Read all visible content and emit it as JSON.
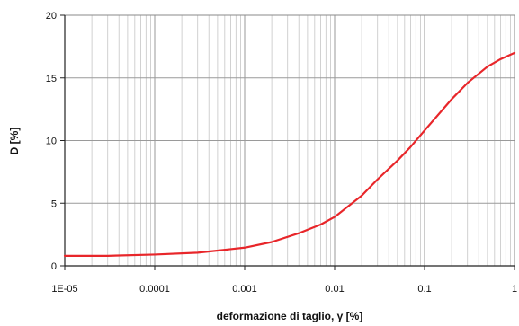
{
  "chart_data": {
    "type": "line",
    "title": "",
    "xlabel": "deformazione di taglio, γ [%]",
    "ylabel": "D [%]",
    "x_scale": "log",
    "xlim": [
      1e-05,
      1
    ],
    "ylim": [
      0,
      20
    ],
    "x_ticks": [
      1e-05,
      0.0001,
      0.001,
      0.01,
      0.1,
      1
    ],
    "x_tick_labels": [
      "1E-05",
      "0.0001",
      "0.001",
      "0.01",
      "0.1",
      "1"
    ],
    "y_ticks": [
      0,
      5,
      10,
      15,
      20
    ],
    "y_tick_labels": [
      "0",
      "5",
      "10",
      "15",
      "20"
    ],
    "grid": true,
    "legend": "none",
    "series": [
      {
        "color": "#e8262a",
        "x": [
          1e-05,
          3e-05,
          0.0001,
          0.0003,
          0.001,
          0.002,
          0.004,
          0.007,
          0.01,
          0.02,
          0.03,
          0.05,
          0.07,
          0.1,
          0.2,
          0.3,
          0.5,
          0.7,
          1
        ],
        "y": [
          0.8,
          0.8,
          0.9,
          1.05,
          1.45,
          1.9,
          2.6,
          3.3,
          3.9,
          5.6,
          6.9,
          8.4,
          9.5,
          10.8,
          13.3,
          14.6,
          15.9,
          16.5,
          17.0
        ]
      }
    ]
  }
}
